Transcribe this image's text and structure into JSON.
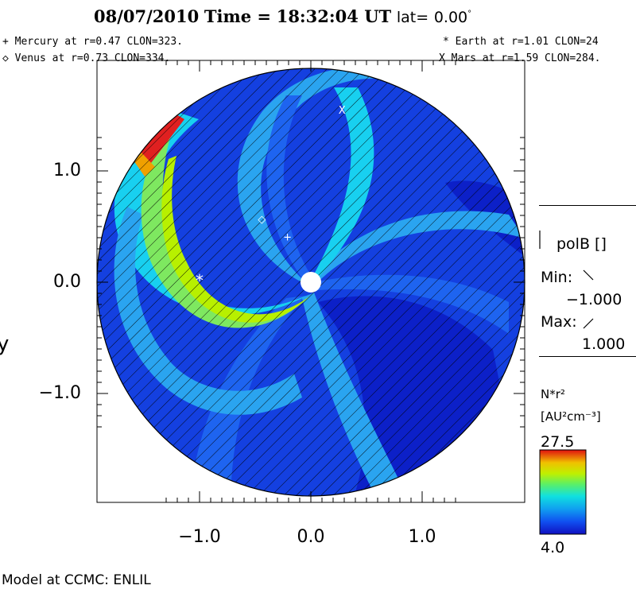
{
  "title": {
    "date": "08/07/2010",
    "time_label": "Time =",
    "time": "18:32:04 UT",
    "lat_label": "lat=",
    "lat_value": "0.00",
    "lat_unit": "°"
  },
  "planets": {
    "mercury": "+ Mercury at r=0.47 CLON=323.",
    "venus": "◇ Venus at r=0.73 CLON=334.",
    "earth": "* Earth at  r=1.01 CLON=24",
    "mars": "X Mars at r=1.59 CLON=284."
  },
  "axes": {
    "y_ticks": [
      "1.0",
      "0.0",
      "−1.0"
    ],
    "x_ticks": [
      "−1.0",
      "0.0",
      "1.0"
    ],
    "y_label": "y",
    "x_range": [
      -1.92,
      1.92
    ],
    "y_range": [
      -1.98,
      1.98
    ]
  },
  "legend": {
    "polarity_label": "polB []",
    "min_label": "Min:",
    "min_value": "−1.000",
    "max_label": "Max:",
    "max_value": "1.000",
    "quantity": "N*r²",
    "units": "[AU²cm⁻³]",
    "colorbar_max": "27.5",
    "colorbar_min": "4.0"
  },
  "markers": [
    {
      "name": "mercury-marker",
      "glyph": "+",
      "x": -0.21,
      "y": 0.41
    },
    {
      "name": "venus-marker",
      "glyph": "◇",
      "x": -0.44,
      "y": 0.57
    },
    {
      "name": "earth-marker",
      "glyph": "*",
      "x": -1.0,
      "y": 0.0
    },
    {
      "name": "mars-marker",
      "glyph": "X",
      "x": 0.28,
      "y": 1.55
    }
  ],
  "colors": {
    "background": "#1440e0",
    "dark_blue": "#0c20c8",
    "mid_blue": "#1e64f0",
    "light_blue": "#2aa4f0",
    "cyan": "#18d0f0",
    "green": "#7ee860",
    "yellow_green": "#b8f000",
    "red": "#e02020"
  },
  "footer": "Model at CCMC: ENLIL"
}
